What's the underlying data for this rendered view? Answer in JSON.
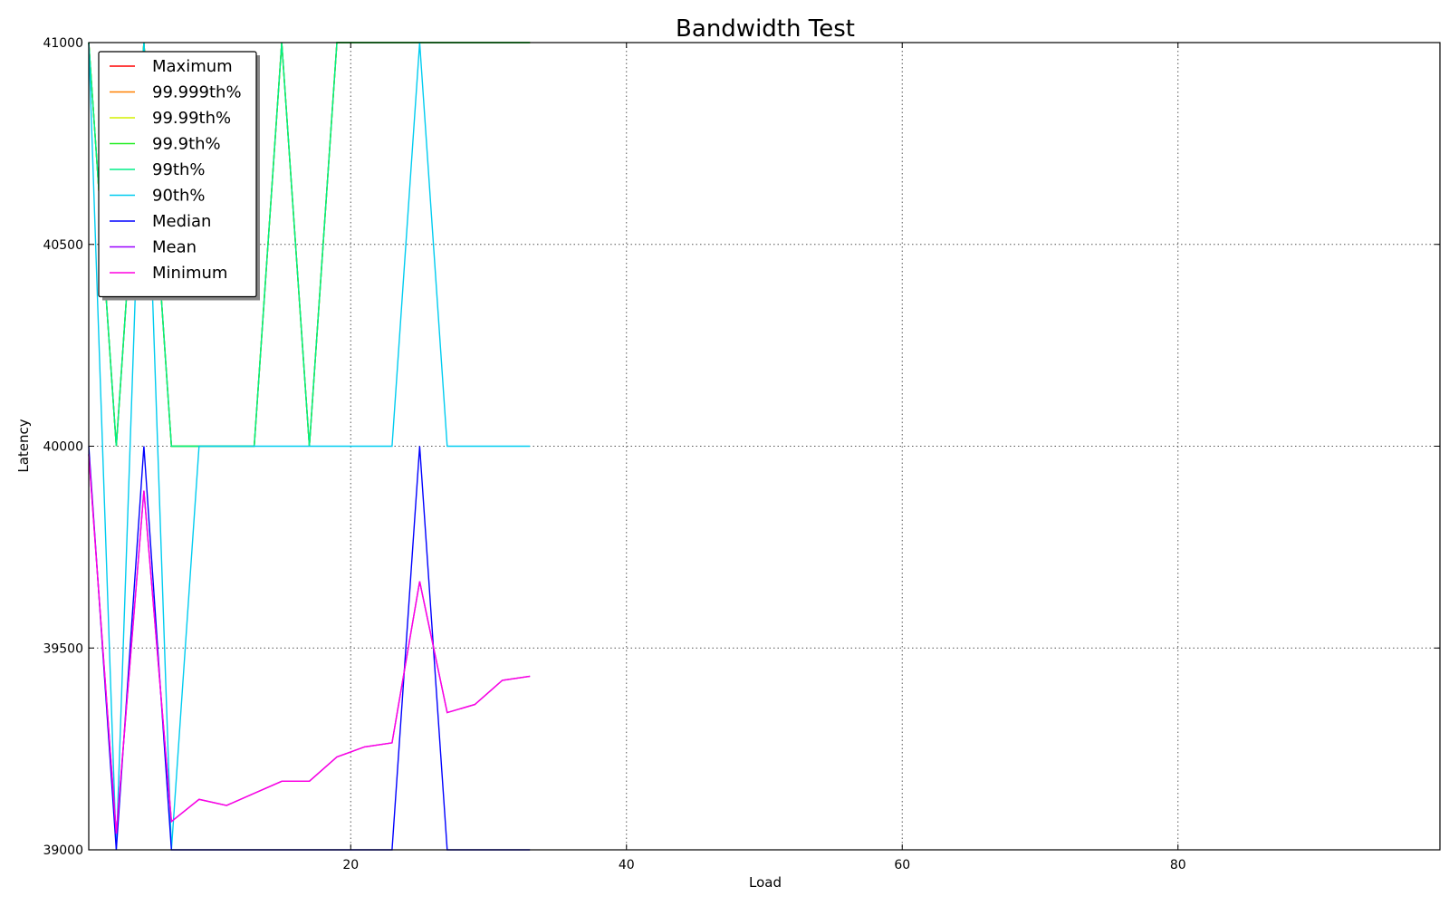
{
  "chart_data": {
    "type": "line",
    "title": "Bandwidth Test",
    "xlabel": "Load",
    "ylabel": "Latency",
    "xlim": [
      1,
      99
    ],
    "ylim": [
      39000,
      41000
    ],
    "x_ticks": [
      20,
      40,
      60,
      80
    ],
    "y_ticks": [
      39000,
      39500,
      40000,
      40500,
      41000
    ],
    "grid": true,
    "legend_position": "upper-left",
    "x": [
      1,
      3,
      5,
      7,
      9,
      11,
      13,
      15,
      17,
      19,
      21,
      23,
      25,
      27,
      29,
      31,
      33
    ],
    "series": [
      {
        "name": "Maximum",
        "color": "#ff0000",
        "values": [
          41000,
          40000,
          41000,
          40000,
          40000,
          40000,
          40000,
          41000,
          40000,
          41000,
          41000,
          41000,
          41000,
          41000,
          41000,
          41000,
          41000
        ]
      },
      {
        "name": "99.999th%",
        "color": "#ff8000",
        "values": [
          41000,
          40000,
          41000,
          40000,
          40000,
          40000,
          40000,
          41000,
          40000,
          41000,
          41000,
          41000,
          41000,
          41000,
          41000,
          41000,
          41000
        ]
      },
      {
        "name": "99.99th%",
        "color": "#d4f000",
        "values": [
          41000,
          40000,
          41000,
          40000,
          40000,
          40000,
          40000,
          41000,
          40000,
          41000,
          41000,
          41000,
          41000,
          41000,
          41000,
          41000,
          41000
        ]
      },
      {
        "name": "99.9th%",
        "color": "#22ee22",
        "values": [
          41000,
          40000,
          41000,
          40000,
          40000,
          40000,
          40000,
          41000,
          40000,
          41000,
          41000,
          41000,
          41000,
          41000,
          41000,
          41000,
          41000
        ]
      },
      {
        "name": "99th%",
        "color": "#00ee88",
        "values": [
          41000,
          40000,
          41000,
          40000,
          40000,
          40000,
          40000,
          41000,
          40000,
          41000,
          41000,
          41000,
          41000,
          41000,
          41000,
          41000,
          41000
        ]
      },
      {
        "name": "90th%",
        "color": "#00ccf0",
        "values": [
          41000,
          39000,
          41000,
          39000,
          40000,
          40000,
          40000,
          40000,
          40000,
          40000,
          40000,
          40000,
          41000,
          40000,
          40000,
          40000,
          40000
        ]
      },
      {
        "name": "Median",
        "color": "#0000ff",
        "values": [
          40000,
          39000,
          40000,
          39000,
          39000,
          39000,
          39000,
          39000,
          39000,
          39000,
          39000,
          39000,
          40000,
          39000,
          39000,
          39000,
          39000
        ]
      },
      {
        "name": "Mean",
        "color": "#9900ff",
        "values": [
          39980,
          39040,
          39890,
          39070,
          39125,
          39110,
          39140,
          39170,
          39170,
          39230,
          39255,
          39265,
          39665,
          39340,
          39360,
          39420,
          39430
        ]
      },
      {
        "name": "Minimum",
        "color": "#ff00e0",
        "values": [
          39980,
          39040,
          39890,
          39070,
          39125,
          39110,
          39140,
          39170,
          39170,
          39230,
          39255,
          39265,
          39665,
          39340,
          39360,
          39420,
          39430
        ]
      }
    ]
  }
}
